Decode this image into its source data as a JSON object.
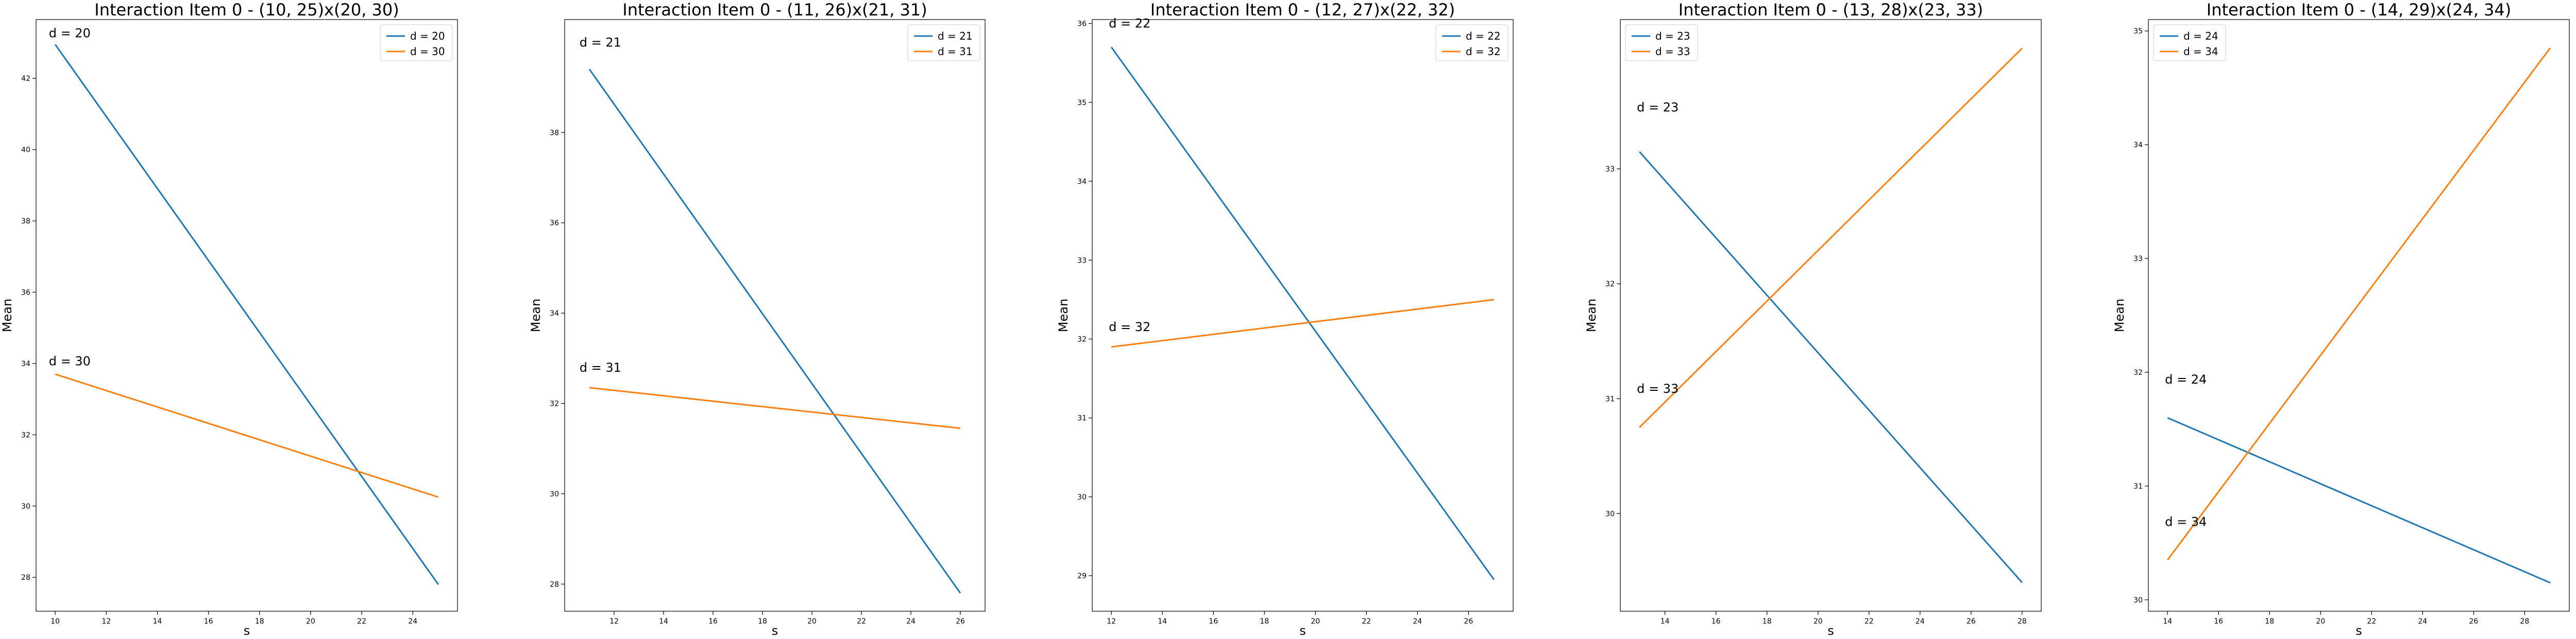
{
  "chart_data": [
    {
      "type": "line",
      "title": "Interaction Item 0 - (10, 25)x(20, 30)",
      "xlabel": "s",
      "ylabel": "Mean",
      "xlim": [
        9.25,
        25.75
      ],
      "ylim": [
        27.05,
        43.65
      ],
      "xticks": [
        10,
        12,
        14,
        16,
        18,
        20,
        22,
        24
      ],
      "yticks": [
        28,
        30,
        32,
        34,
        36,
        38,
        40,
        42
      ],
      "legend_position": "upper right",
      "series": [
        {
          "name": "d = 20",
          "color": "#1f77b4",
          "x": [
            10,
            25
          ],
          "y": [
            42.95,
            27.8
          ]
        },
        {
          "name": "d = 30",
          "color": "#ff7f0e",
          "x": [
            10,
            25
          ],
          "y": [
            33.7,
            30.25
          ]
        }
      ],
      "annotations": [
        {
          "text": "d = 20",
          "x": 9.75,
          "y": 43.15
        },
        {
          "text": "d = 30",
          "x": 9.75,
          "y": 33.95
        }
      ]
    },
    {
      "type": "line",
      "title": "Interaction Item 0 - (11, 26)x(21, 31)",
      "xlabel": "s",
      "ylabel": "Mean",
      "xlim": [
        10.0,
        27.0
      ],
      "ylim": [
        27.4,
        40.5
      ],
      "xticks": [
        12,
        14,
        16,
        18,
        20,
        22,
        24,
        26
      ],
      "yticks": [
        28,
        30,
        32,
        34,
        36,
        38
      ],
      "legend_position": "upper right",
      "series": [
        {
          "name": "d = 21",
          "color": "#1f77b4",
          "x": [
            11,
            26
          ],
          "y": [
            39.4,
            27.8
          ]
        },
        {
          "name": "d = 31",
          "color": "#ff7f0e",
          "x": [
            11,
            26
          ],
          "y": [
            32.35,
            31.45
          ]
        }
      ],
      "annotations": [
        {
          "text": "d = 21",
          "x": 10.6,
          "y": 39.9
        },
        {
          "text": "d = 31",
          "x": 10.6,
          "y": 32.7
        }
      ]
    },
    {
      "type": "line",
      "title": "Interaction Item 0 - (12, 27)x(22, 32)",
      "xlabel": "s",
      "ylabel": "Mean",
      "xlim": [
        11.25,
        27.75
      ],
      "ylim": [
        28.55,
        36.05
      ],
      "xticks": [
        12,
        14,
        16,
        18,
        20,
        22,
        24,
        26
      ],
      "yticks": [
        29,
        30,
        31,
        32,
        33,
        34,
        35,
        36
      ],
      "legend_position": "upper right",
      "series": [
        {
          "name": "d = 22",
          "color": "#1f77b4",
          "x": [
            12,
            27
          ],
          "y": [
            35.7,
            28.95
          ]
        },
        {
          "name": "d = 32",
          "color": "#ff7f0e",
          "x": [
            12,
            27
          ],
          "y": [
            31.9,
            32.5
          ]
        }
      ],
      "annotations": [
        {
          "text": "d = 22",
          "x": 11.9,
          "y": 35.95
        },
        {
          "text": "d = 32",
          "x": 11.9,
          "y": 32.1
        }
      ]
    },
    {
      "type": "line",
      "title": "Interaction Item 0 - (13, 28)x(23, 33)",
      "xlabel": "s",
      "ylabel": "Mean",
      "xlim": [
        12.25,
        28.75
      ],
      "ylim": [
        29.15,
        34.3
      ],
      "xticks": [
        14,
        16,
        18,
        20,
        22,
        24,
        26,
        28
      ],
      "yticks": [
        30,
        31,
        32,
        33
      ],
      "legend_position": "upper left",
      "series": [
        {
          "name": "d = 23",
          "color": "#1f77b4",
          "x": [
            13,
            28
          ],
          "y": [
            33.15,
            29.4
          ]
        },
        {
          "name": "d = 33",
          "color": "#ff7f0e",
          "x": [
            13,
            28
          ],
          "y": [
            30.75,
            34.05
          ]
        }
      ],
      "annotations": [
        {
          "text": "d = 23",
          "x": 12.9,
          "y": 33.5
        },
        {
          "text": "d = 33",
          "x": 12.9,
          "y": 31.05
        }
      ]
    },
    {
      "type": "line",
      "title": "Interaction Item 0 - (14, 29)x(24, 34)",
      "xlabel": "s",
      "ylabel": "Mean",
      "xlim": [
        13.25,
        29.75
      ],
      "ylim": [
        29.9,
        35.1
      ],
      "xticks": [
        14,
        16,
        18,
        20,
        22,
        24,
        26,
        28
      ],
      "yticks": [
        30,
        31,
        32,
        33,
        34,
        35
      ],
      "legend_position": "upper left",
      "series": [
        {
          "name": "d = 24",
          "color": "#1f77b4",
          "x": [
            14,
            29
          ],
          "y": [
            31.6,
            30.15
          ]
        },
        {
          "name": "d = 34",
          "color": "#ff7f0e",
          "x": [
            14,
            29
          ],
          "y": [
            30.35,
            34.85
          ]
        }
      ],
      "annotations": [
        {
          "text": "d = 24",
          "x": 13.9,
          "y": 31.9
        },
        {
          "text": "d = 34",
          "x": 13.9,
          "y": 30.65
        }
      ]
    }
  ]
}
